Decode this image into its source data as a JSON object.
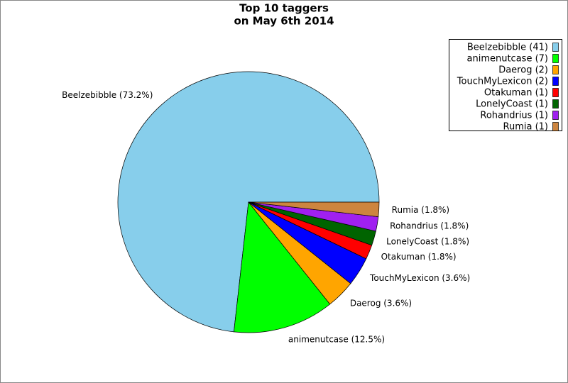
{
  "chart_data": {
    "type": "pie",
    "title": [
      "Top 10 taggers",
      "on May 6th 2014"
    ],
    "values": [
      41,
      7,
      2,
      2,
      1,
      1,
      1,
      1
    ],
    "slice_labels": [
      "Beelzebibble (73.2%)",
      "animenutcase (12.5%)",
      "Daerog (3.6%)",
      "TouchMyLexicon (3.6%)",
      "Otakuman (1.8%)",
      "LonelyCoast (1.8%)",
      "Rohandrius (1.8%)",
      "Rumia (1.8%)"
    ],
    "legend_labels": [
      "Beelzebibble (41)",
      "animenutcase (7)",
      "Daerog (2)",
      "TouchMyLexicon (2)",
      "Otakuman (1)",
      "LonelyCoast (1)",
      "Rohandrius (1)",
      "Rumia (1)"
    ],
    "colors": [
      "#87ceeb",
      "#00ff00",
      "#ffa500",
      "#0000ff",
      "#ff0000",
      "#006400",
      "#a020f0",
      "#cd853f"
    ],
    "legend_position": "upper right"
  }
}
